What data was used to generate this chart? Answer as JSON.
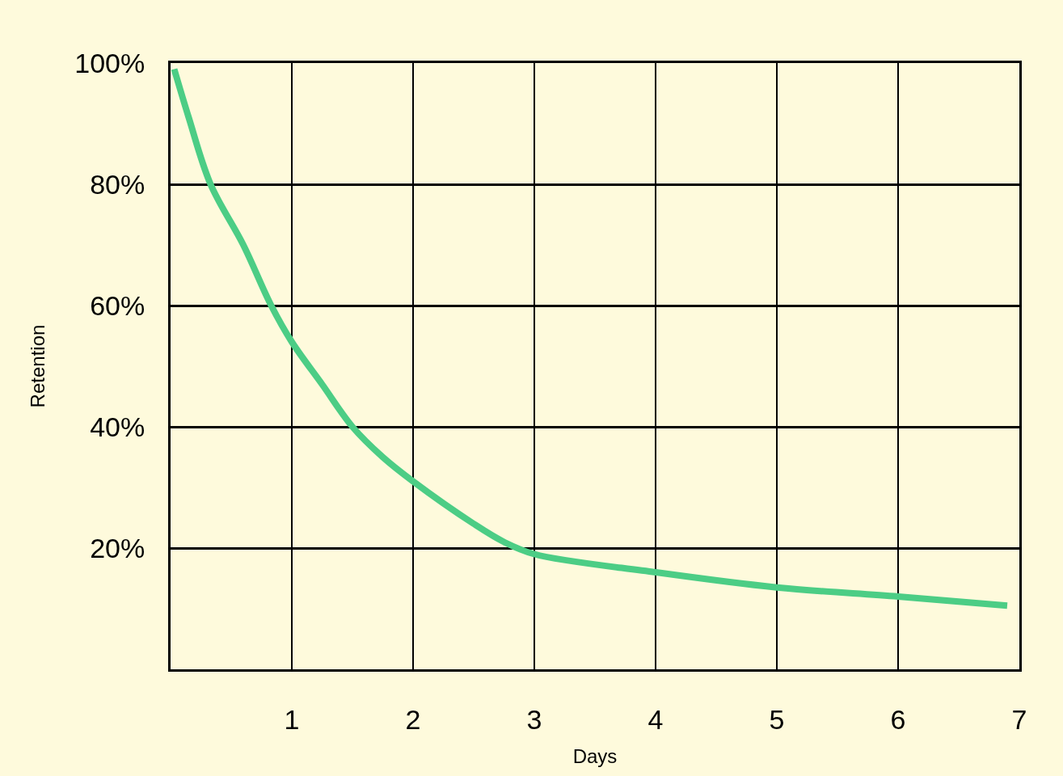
{
  "chart_data": {
    "type": "line",
    "xlabel": "Days",
    "ylabel": "Retention",
    "x": [
      0.03,
      0.15,
      0.33,
      0.6,
      0.83,
      1.0,
      1.25,
      1.5,
      1.75,
      2.0,
      2.5,
      2.75,
      3.0,
      4.0,
      5.0,
      6.0,
      6.9
    ],
    "series": [
      {
        "color": "#4ccd85",
        "values": [
          99,
          91,
          80,
          70,
          60,
          54,
          47,
          40,
          35,
          31,
          24,
          21,
          19,
          16,
          13.5,
          12,
          10.5
        ]
      }
    ],
    "xlim": [
      0,
      7
    ],
    "xticks": [
      1,
      2,
      3,
      4,
      5,
      6,
      7
    ],
    "ylim": [
      0,
      100
    ],
    "yticks": [
      {
        "value": 20,
        "label": "20%"
      },
      {
        "value": 40,
        "label": "40%"
      },
      {
        "value": 60,
        "label": "60%"
      },
      {
        "value": 80,
        "label": "80%"
      },
      {
        "value": 100,
        "label": "100%"
      }
    ],
    "grid": true,
    "marker": "none",
    "line_style": "solid"
  }
}
